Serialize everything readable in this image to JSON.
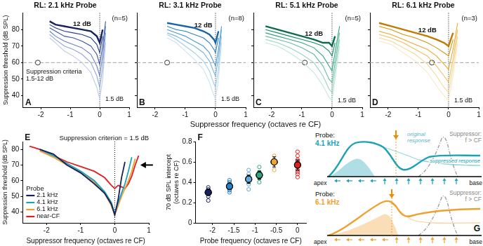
{
  "shared_x_label": "Suppressor frequency (octaves re CF)",
  "chart_data": [
    {
      "type": "line",
      "panel": "A",
      "title": "RL: 2.1 kHz Probe",
      "n_label": "(n=5)",
      "y_label": "Suppression threshold (dB SPL)",
      "note": "Suppression criteria\n1.5-12 dB",
      "top_curve_label": "12 dB",
      "bottom_curve_label": "1.5 dB",
      "x": [
        -1.7,
        -1.5,
        -1.2,
        -0.9,
        -0.6,
        -0.3,
        -0.1,
        0,
        0.1,
        0.2
      ],
      "series": [
        {
          "color": "#16215e",
          "values": [
            85,
            83,
            82,
            81,
            80,
            79,
            76,
            72,
            80,
            null
          ]
        },
        {
          "color": "#23378a",
          "values": [
            83,
            81,
            79,
            78,
            77,
            75,
            71,
            66,
            76,
            null
          ]
        },
        {
          "color": "#3b55a8",
          "values": [
            81,
            79,
            76,
            75,
            73,
            70,
            65,
            59,
            70,
            85
          ]
        },
        {
          "color": "#6282c4",
          "values": [
            79,
            76,
            73,
            71,
            69,
            65,
            58,
            52,
            64,
            82
          ]
        },
        {
          "color": "#8fa8d8",
          "values": [
            77,
            74,
            70,
            68,
            65,
            60,
            52,
            45,
            57,
            78
          ]
        },
        {
          "color": "#bccbe9",
          "values": [
            75,
            72,
            67,
            64,
            60,
            54,
            45,
            38,
            50,
            72
          ]
        }
      ],
      "probe_marker": {
        "x": -2.1,
        "y": 60
      },
      "reference_y": 60,
      "reference_x": 0,
      "xlim": [
        -2.6,
        1
      ],
      "xticks": [
        -2,
        -1,
        0,
        1
      ],
      "ylim": [
        33,
        90
      ],
      "yticks": [
        40,
        50,
        60,
        70,
        80
      ],
      "grid": false
    },
    {
      "type": "line",
      "panel": "B",
      "title": "RL: 3.1 kHz Probe",
      "n_label": "(n=8)",
      "top_curve_label": "12 dB",
      "bottom_curve_label": "1.5 dB",
      "x": [
        -1.6,
        -1.3,
        -1.0,
        -0.7,
        -0.4,
        -0.2,
        -0.05,
        0,
        0.1,
        0.2
      ],
      "series": [
        {
          "color": "#1565a8",
          "values": [
            84,
            83,
            82,
            81,
            79,
            77,
            74,
            72,
            79,
            null
          ]
        },
        {
          "color": "#2a80c4",
          "values": [
            82,
            80,
            79,
            77,
            75,
            72,
            68,
            66,
            75,
            null
          ]
        },
        {
          "color": "#4b9ad3",
          "values": [
            80,
            78,
            76,
            73,
            70,
            66,
            60,
            58,
            68,
            82
          ]
        },
        {
          "color": "#77b5e0",
          "values": [
            78,
            76,
            73,
            70,
            66,
            61,
            54,
            52,
            63,
            80
          ]
        },
        {
          "color": "#a2cdeb",
          "values": [
            77,
            74,
            70,
            66,
            61,
            55,
            47,
            45,
            56,
            76
          ]
        },
        {
          "color": "#cbe3f4",
          "values": [
            75,
            72,
            67,
            62,
            56,
            48,
            40,
            38,
            50,
            72
          ]
        }
      ],
      "probe_marker": {
        "x": -1.6,
        "y": 60
      },
      "reference_y": 60,
      "reference_x": 0,
      "xlim": [
        -2.6,
        1
      ],
      "xticks": [
        -2,
        -1,
        0,
        1
      ],
      "ylim": [
        33,
        90
      ],
      "yticks": [
        40,
        50,
        60,
        70,
        80
      ],
      "grid": false,
      "tick_labels": "x"
    },
    {
      "type": "line",
      "panel": "C",
      "title": "RL: 5.1 kHz Probe",
      "n_label": "(n=5)",
      "top_curve_label": "12 dB",
      "bottom_curve_label": "1.5 dB",
      "x": [
        -2.2,
        -1.8,
        -1.4,
        -1.0,
        -0.6,
        -0.3,
        -0.1,
        0,
        0.1,
        0.25
      ],
      "series": [
        {
          "color": "#0b6b4a",
          "values": [
            82,
            80,
            78,
            76,
            74,
            72,
            72,
            70,
            76,
            null
          ]
        },
        {
          "color": "#178a66",
          "values": [
            80,
            78,
            76,
            74,
            72,
            70,
            67,
            64,
            72,
            null
          ]
        },
        {
          "color": "#2fa583",
          "values": [
            78,
            76,
            74,
            72,
            69,
            64,
            58,
            55,
            66,
            82
          ]
        },
        {
          "color": "#62bea0",
          "values": [
            76,
            74,
            72,
            69,
            65,
            58,
            50,
            48,
            60,
            78
          ]
        },
        {
          "color": "#96d4c0",
          "values": [
            74,
            72,
            69,
            65,
            60,
            52,
            44,
            42,
            55,
            74
          ]
        },
        {
          "color": "#c4e8dc",
          "values": [
            72,
            70,
            66,
            61,
            54,
            46,
            39,
            37,
            50,
            70
          ]
        }
      ],
      "probe_marker": {
        "x": -0.9,
        "y": 60
      },
      "reference_y": 60,
      "reference_x": 0,
      "xlim": [
        -2.6,
        1
      ],
      "xticks": [
        -2,
        -1,
        0,
        1
      ],
      "ylim": [
        33,
        90
      ],
      "yticks": [
        40,
        50,
        60,
        70,
        80
      ],
      "grid": false,
      "tick_labels": "x"
    },
    {
      "type": "line",
      "panel": "D",
      "title": "RL: 6.1 kHz Probe",
      "n_label": "(n=3)",
      "top_curve_label": "12 dB",
      "bottom_curve_label": "1.5 dB",
      "x": [
        -2.3,
        -1.9,
        -1.5,
        -1.1,
        -0.7,
        -0.4,
        -0.15,
        0,
        0.15,
        0.3
      ],
      "series": [
        {
          "color": "#c27a00",
          "values": [
            84,
            82,
            80,
            78,
            76,
            74,
            72,
            70,
            78,
            null
          ]
        },
        {
          "color": "#d99212",
          "values": [
            82,
            80,
            77,
            75,
            72,
            69,
            66,
            64,
            74,
            null
          ]
        },
        {
          "color": "#eaa92e",
          "values": [
            79,
            77,
            74,
            71,
            68,
            64,
            59,
            56,
            68,
            84
          ]
        },
        {
          "color": "#f1c062",
          "values": [
            77,
            75,
            72,
            68,
            64,
            58,
            52,
            48,
            62,
            80
          ]
        },
        {
          "color": "#f6d796",
          "values": [
            75,
            73,
            69,
            65,
            59,
            52,
            45,
            42,
            57,
            76
          ]
        },
        {
          "color": "#fae9c8",
          "values": [
            73,
            71,
            66,
            61,
            54,
            46,
            40,
            37,
            52,
            72
          ]
        }
      ],
      "probe_marker": {
        "x": -0.55,
        "y": 60
      },
      "reference_y": 60,
      "reference_x": 0,
      "xlim": [
        -2.6,
        1
      ],
      "xticks": [
        -2,
        -1,
        0,
        1
      ],
      "ylim": [
        33,
        90
      ],
      "yticks": [
        40,
        50,
        60,
        70,
        80
      ],
      "grid": false,
      "tick_labels": "x"
    },
    {
      "type": "line",
      "panel": "E",
      "note": "Suppression criterion = 1.5 dB",
      "legend": "lower left",
      "legend_title": "Probe",
      "x_label": "Suppressor frequency (octaves re CF)",
      "y_label": "Suppression threshold (dB SPL)",
      "x": [
        -2.5,
        -2.2,
        -1.8,
        -1.4,
        -1.0,
        -0.6,
        -0.3,
        -0.1,
        0,
        0.1,
        0.2,
        0.3,
        0.4,
        0.5,
        0.6,
        0.7
      ],
      "series": [
        {
          "name": "2.1 kHz",
          "color": "#16215e",
          "values": [
            null,
            80,
            77,
            70,
            65,
            58,
            52,
            45,
            38,
            48,
            62,
            72,
            null,
            null,
            null,
            null
          ]
        },
        {
          "name": "4.1 kHz",
          "color": "#1aa3b5",
          "values": [
            null,
            80,
            76,
            71,
            66,
            60,
            53,
            46,
            39,
            46,
            52,
            58,
            66,
            75,
            null,
            null
          ]
        },
        {
          "name": "6.1 kHz",
          "color": "#f0a030",
          "values": [
            null,
            79,
            75,
            70,
            65,
            59,
            52,
            44,
            38,
            44,
            50,
            55,
            60,
            66,
            74,
            null
          ]
        },
        {
          "name": "near-CF",
          "color": "#e02020",
          "values": [
            82,
            80,
            76,
            72,
            69,
            66,
            62,
            57,
            55,
            57,
            56,
            55,
            58,
            63,
            70,
            76
          ]
        }
      ],
      "arrow": {
        "x": 0.75,
        "y": 70
      },
      "reference_x": 0,
      "xlim": [
        -2.7,
        1
      ],
      "xticks": [
        -2,
        -1,
        0,
        1
      ],
      "ylim": [
        33,
        85
      ],
      "yticks": [
        40,
        50,
        60,
        70,
        80
      ],
      "grid": false
    },
    {
      "type": "scatter",
      "panel": "F",
      "x_label": "Probe frequency (octaves re CF)",
      "y_label": "70 dB SPL intercept\n(octaves re CF)",
      "series": [
        {
          "color": "#16215e",
          "x": -2.1,
          "values": [
            0.22,
            0.26,
            0.3,
            0.33,
            0.35
          ],
          "mean": 0.3,
          "error": 0.03
        },
        {
          "color": "#2a80c4",
          "x": -1.6,
          "values": [
            0.3,
            0.33,
            0.35,
            0.38,
            0.4,
            0.37,
            0.32,
            0.42
          ],
          "mean": 0.36,
          "error": 0.03
        },
        {
          "color": "#62a8dc",
          "x": -1.15,
          "values": [
            0.33,
            0.38,
            0.42,
            0.45,
            0.48,
            0.52,
            0.4
          ],
          "mean": 0.43,
          "error": 0.04
        },
        {
          "color": "#2fa583",
          "x": -0.9,
          "values": [
            0.4,
            0.44,
            0.48,
            0.5,
            0.55
          ],
          "mean": 0.47,
          "error": 0.04
        },
        {
          "color": "#eaa92e",
          "x": -0.55,
          "values": [
            0.52,
            0.6,
            0.66
          ],
          "mean": 0.6,
          "error": 0.05
        },
        {
          "color": "#e02020",
          "x": 0,
          "values": [
            0.45,
            0.5,
            0.55,
            0.58,
            0.62,
            0.66,
            0.7,
            0.52,
            0.6,
            0.48
          ],
          "mean": 0.57,
          "error": 0.05
        }
      ],
      "xlim": [
        -2.4,
        0.2
      ],
      "xticks": [
        -2,
        -1.5,
        -1,
        -0.5,
        0
      ],
      "ylim": [
        0,
        0.8
      ],
      "yticks": [
        0,
        0.2,
        0.4,
        0.6,
        0.8
      ],
      "grid": false
    }
  ],
  "diagram": {
    "panel": "G",
    "rows": [
      {
        "probe_label": "Probe:",
        "probe_freq": "4.1 kHz",
        "color": "#1aa3b5",
        "original_label": "original\nresponse",
        "suppressor_label": "Suppressor:\nf > CF",
        "suppressed_label": "suppressed response",
        "apex": "apex",
        "base": "base"
      },
      {
        "probe_label": "Probe:",
        "probe_freq": "6.1 kHz",
        "color": "#f0a030",
        "suppressor_label": "Suppressor:\nf > CF",
        "apex": "apex",
        "base": "base"
      }
    ]
  }
}
